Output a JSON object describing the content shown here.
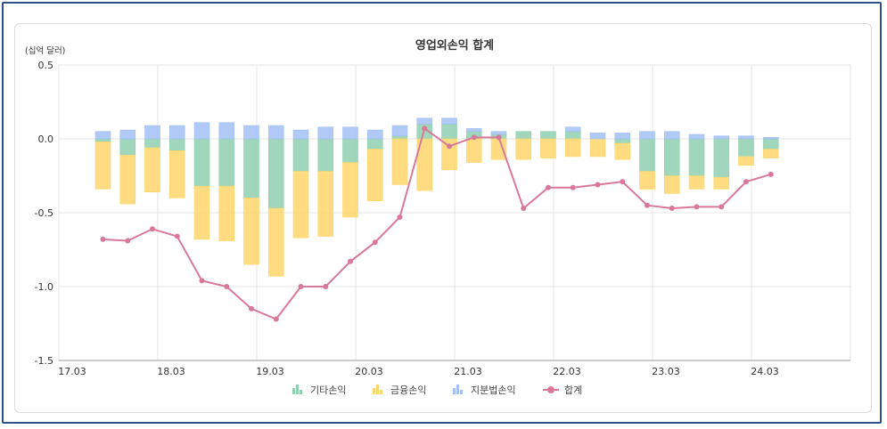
{
  "chart_data": {
    "type": "bar",
    "title": "영업외손익 합계",
    "unit_label": "(십억 달러)",
    "ylim": [
      -1.5,
      0.5
    ],
    "y_ticks": [
      "0.5",
      "0.0",
      "-0.5",
      "-1.0",
      "-1.5"
    ],
    "y_tick_values": [
      0.5,
      0.0,
      -0.5,
      -1.0,
      -1.5
    ],
    "x_ticks": [
      "17.03",
      "18.03",
      "19.03",
      "20.03",
      "21.03",
      "22.03",
      "23.03",
      "24.03"
    ],
    "grid": true,
    "legend_position": "bottom",
    "categories": [
      "17.09",
      "17.12",
      "18.03",
      "18.06",
      "18.09",
      "18.12",
      "19.03",
      "19.06",
      "19.09",
      "19.12",
      "20.03",
      "20.06",
      "20.09",
      "20.12",
      "21.03",
      "21.06",
      "21.09",
      "21.12",
      "22.03",
      "22.06",
      "22.09",
      "22.12",
      "23.03",
      "23.06",
      "23.09",
      "23.12",
      "24.03",
      "24.06",
      "24.09"
    ],
    "series": [
      {
        "name": "기타손익",
        "color": "#8fd0b0",
        "type": "bar",
        "values": [
          -0.02,
          -0.11,
          -0.06,
          -0.08,
          -0.32,
          -0.32,
          -0.4,
          -0.47,
          -0.22,
          -0.22,
          -0.16,
          -0.07,
          0.02,
          0.1,
          0.1,
          0.05,
          0.03,
          0.05,
          0.05,
          0.05,
          0.0,
          -0.03,
          -0.22,
          -0.25,
          -0.25,
          -0.26,
          -0.12,
          -0.07,
          0.0
        ]
      },
      {
        "name": "금융손익",
        "color": "#ffd66b",
        "type": "bar",
        "values": [
          -0.32,
          -0.33,
          -0.3,
          -0.32,
          -0.36,
          -0.37,
          -0.45,
          -0.46,
          -0.45,
          -0.44,
          -0.37,
          -0.35,
          -0.31,
          -0.35,
          -0.21,
          -0.16,
          -0.14,
          -0.14,
          -0.13,
          -0.12,
          -0.12,
          -0.11,
          -0.12,
          -0.12,
          -0.09,
          -0.08,
          -0.06,
          -0.06,
          0.0
        ]
      },
      {
        "name": "지분법손익",
        "color": "#a3bff5",
        "type": "bar",
        "values": [
          0.05,
          0.06,
          0.09,
          0.09,
          0.11,
          0.11,
          0.09,
          0.09,
          0.06,
          0.08,
          0.08,
          0.06,
          0.07,
          0.04,
          0.04,
          0.02,
          0.02,
          0.0,
          0.0,
          0.03,
          0.04,
          0.04,
          0.05,
          0.05,
          0.03,
          0.02,
          0.02,
          0.01,
          0.0
        ]
      },
      {
        "name": "합계",
        "color": "#d9799a",
        "type": "line",
        "values": [
          -0.68,
          -0.69,
          -0.61,
          -0.66,
          -0.96,
          -1.0,
          -1.15,
          -1.22,
          -1.0,
          -1.0,
          -0.83,
          -0.7,
          -0.53,
          0.07,
          -0.05,
          0.01,
          0.01,
          -0.47,
          -0.33,
          -0.33,
          -0.31,
          -0.29,
          -0.45,
          -0.47,
          -0.46,
          -0.46,
          -0.29,
          -0.24,
          null
        ]
      }
    ]
  }
}
